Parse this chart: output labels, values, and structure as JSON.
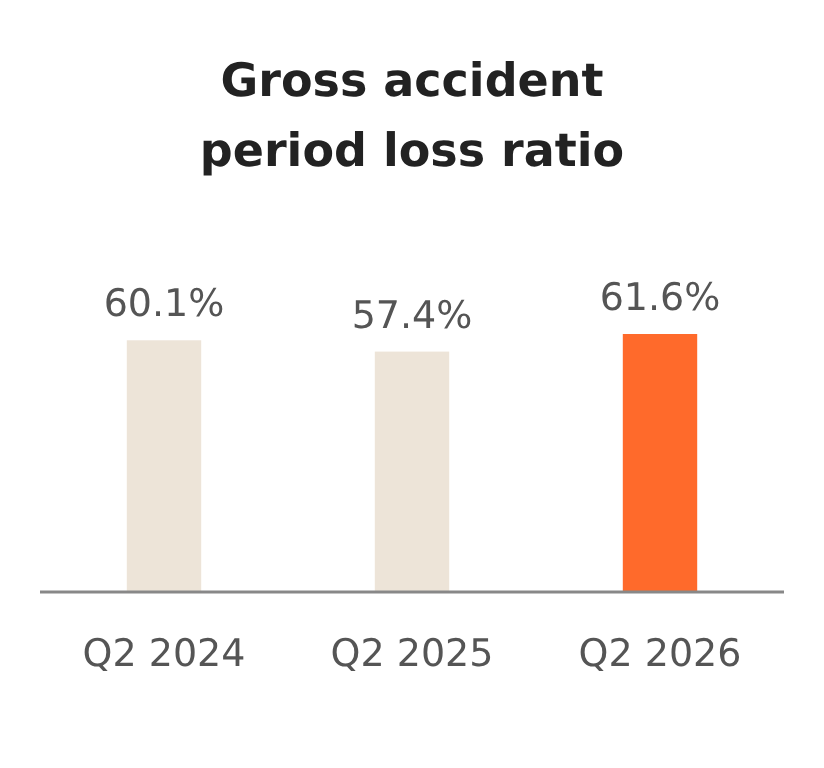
{
  "chart_data": {
    "type": "bar",
    "title": "Gross accident\nperiod loss ratio",
    "categories": [
      "Q2 2024",
      "Q2 2025",
      "Q2 2026"
    ],
    "values": [
      60.1,
      57.4,
      61.6
    ],
    "colors": [
      "#ede4d8",
      "#ede4d8",
      "#ff6a2b"
    ],
    "value_labels": [
      "60.1%",
      "57.4%",
      "61.6%"
    ],
    "tick_labels": "x"
  }
}
